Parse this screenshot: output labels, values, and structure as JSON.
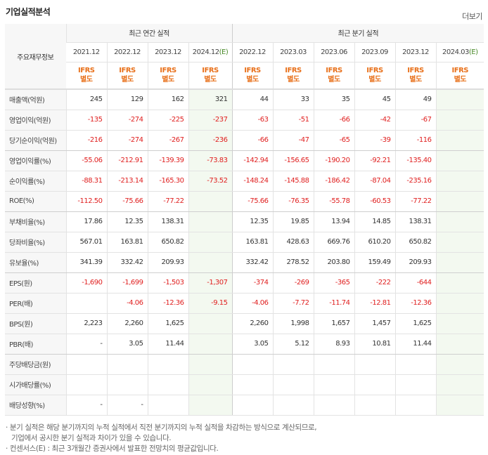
{
  "title": "기업실적분석",
  "more_label": "더보기",
  "header": {
    "row_label": "주요재무정보",
    "annual_group": "최근 연간 실적",
    "quarter_group": "최근 분기 실적",
    "annual_periods": [
      "2021.12",
      "2022.12",
      "2023.12",
      "2024.12"
    ],
    "annual_est_suffix": "(E)",
    "quarter_periods": [
      "2022.12",
      "2023.03",
      "2023.06",
      "2023.09",
      "2023.12",
      "2024.03"
    ],
    "quarter_est_suffix": "(E)",
    "ifrs_line1": "IFRS",
    "ifrs_line2": "별도"
  },
  "rows": [
    {
      "label": "매출액(억원)",
      "values": [
        "245",
        "129",
        "162",
        "321",
        "44",
        "33",
        "35",
        "45",
        "49",
        ""
      ]
    },
    {
      "label": "영업이익(억원)",
      "values": [
        "-135",
        "-274",
        "-225",
        "-237",
        "-63",
        "-51",
        "-66",
        "-42",
        "-67",
        ""
      ]
    },
    {
      "label": "당기순이익(억원)",
      "values": [
        "-216",
        "-274",
        "-267",
        "-236",
        "-66",
        "-47",
        "-65",
        "-39",
        "-116",
        ""
      ]
    },
    {
      "label": "영업이익률(%)",
      "values": [
        "-55.06",
        "-212.91",
        "-139.39",
        "-73.83",
        "-142.94",
        "-156.65",
        "-190.20",
        "-92.21",
        "-135.40",
        ""
      ]
    },
    {
      "label": "순이익률(%)",
      "values": [
        "-88.31",
        "-213.14",
        "-165.30",
        "-73.52",
        "-148.24",
        "-145.88",
        "-186.42",
        "-87.04",
        "-235.16",
        ""
      ]
    },
    {
      "label": "ROE(%)",
      "values": [
        "-112.50",
        "-75.66",
        "-77.22",
        "",
        "-75.66",
        "-76.35",
        "-55.78",
        "-60.53",
        "-77.22",
        ""
      ]
    },
    {
      "label": "부채비율(%)",
      "values": [
        "17.86",
        "12.35",
        "138.31",
        "",
        "12.35",
        "19.85",
        "13.94",
        "14.85",
        "138.31",
        ""
      ]
    },
    {
      "label": "당좌비율(%)",
      "values": [
        "567.01",
        "163.81",
        "650.82",
        "",
        "163.81",
        "428.63",
        "669.76",
        "610.20",
        "650.82",
        ""
      ]
    },
    {
      "label": "유보율(%)",
      "values": [
        "341.39",
        "332.42",
        "209.93",
        "",
        "332.42",
        "278.52",
        "203.80",
        "159.49",
        "209.93",
        ""
      ]
    },
    {
      "label": "EPS(원)",
      "values": [
        "-1,690",
        "-1,699",
        "-1,503",
        "-1,307",
        "-374",
        "-269",
        "-365",
        "-222",
        "-644",
        ""
      ]
    },
    {
      "label": "PER(배)",
      "values": [
        "",
        "-4.06",
        "-12.36",
        "-9.15",
        "-4.06",
        "-7.72",
        "-11.74",
        "-12.81",
        "-12.36",
        ""
      ]
    },
    {
      "label": "BPS(원)",
      "values": [
        "2,223",
        "2,260",
        "1,625",
        "",
        "2,260",
        "1,998",
        "1,657",
        "1,457",
        "1,625",
        ""
      ]
    },
    {
      "label": "PBR(배)",
      "values": [
        "-",
        "3.05",
        "11.44",
        "",
        "3.05",
        "5.12",
        "8.93",
        "10.81",
        "11.44",
        ""
      ]
    },
    {
      "label": "주당배당금(원)",
      "values": [
        "",
        "",
        "",
        "",
        "",
        "",
        "",
        "",
        "",
        ""
      ]
    },
    {
      "label": "시가배당률(%)",
      "values": [
        "",
        "",
        "",
        "",
        "",
        "",
        "",
        "",
        "",
        ""
      ]
    },
    {
      "label": "배당성향(%)",
      "values": [
        "-",
        "-",
        "",
        "",
        "",
        "",
        "",
        "",
        "",
        ""
      ]
    }
  ],
  "notes": {
    "line1": "· 분기 실적은 해당 분기까지의 누적 실적에서 직전 분기까지의 누적 실적을 차감하는 방식으로 계산되므로,",
    "line2": "기업에서 공시한 분기 실적과 차이가 있을 수 있습니다.",
    "line3": "· 컨센서스(E) : 최근 3개월간 증권사에서 발표한 전망치의 평균값입니다."
  },
  "colors": {
    "negative": "#e02020",
    "ifrs": "#e8701a",
    "estimate_bg": "#f3f9f0"
  }
}
